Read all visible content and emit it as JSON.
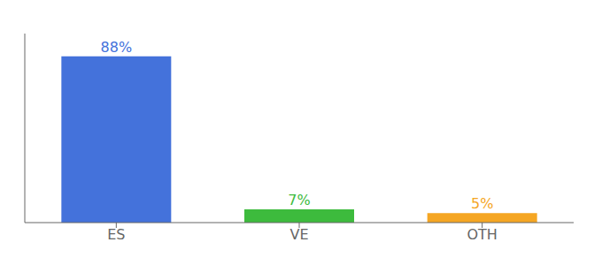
{
  "chart_data": {
    "type": "bar",
    "categories": [
      "ES",
      "VE",
      "OTH"
    ],
    "values": [
      88,
      7,
      5
    ],
    "value_labels": [
      "88%",
      "7%",
      "5%"
    ],
    "colors": [
      "#4472db",
      "#3dbb3d",
      "#f5a623"
    ],
    "ylim": [
      0,
      100
    ],
    "data_labels": true,
    "tick_labels": "x"
  }
}
